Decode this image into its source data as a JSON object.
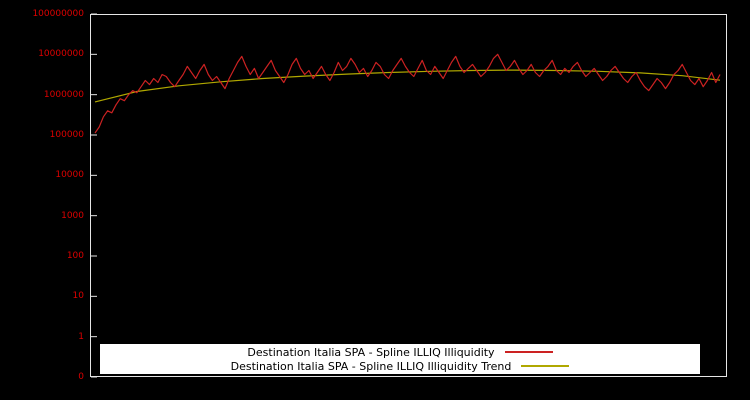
{
  "chart": {
    "background_color": "#000000",
    "plot_border_color": "#e6e6e6",
    "tick_label_color": "#dd0000",
    "y_axis": {
      "scale": "log",
      "tick_labels": [
        "100000000",
        "10000000",
        "1000000",
        "100000",
        "10000",
        "1000",
        "100",
        "10",
        "1",
        "0"
      ]
    },
    "legend": {
      "background_color": "#ffffff",
      "text_color": "#000000",
      "position": "bottom-center"
    }
  },
  "chart_data": {
    "type": "line",
    "title": "",
    "xlabel": "",
    "ylabel": "",
    "yscale": "log",
    "ylim": [
      0.1,
      100000000
    ],
    "x_range": [
      0,
      149
    ],
    "grid": false,
    "legend_position": "bottom-center",
    "series": [
      {
        "name": "Destination Italia SPA - Spline ILLIQ Illiquidity",
        "color": "#cc2222",
        "values": [
          112000,
          158000,
          282000,
          398000,
          355000,
          562000,
          794000,
          708000,
          1000000,
          1260000,
          1120000,
          1580000,
          2240000,
          1780000,
          2510000,
          2000000,
          3160000,
          2820000,
          2000000,
          1580000,
          2240000,
          3160000,
          5010000,
          3550000,
          2510000,
          3980000,
          5620000,
          3160000,
          2240000,
          2820000,
          2000000,
          1410000,
          2510000,
          3980000,
          6310000,
          8910000,
          5010000,
          3160000,
          4470000,
          2510000,
          3550000,
          5010000,
          7080000,
          3980000,
          2820000,
          2000000,
          3160000,
          5620000,
          7940000,
          4470000,
          3160000,
          3980000,
          2510000,
          3550000,
          5010000,
          3160000,
          2240000,
          3550000,
          6310000,
          3980000,
          5010000,
          7940000,
          5620000,
          3550000,
          4470000,
          2820000,
          3980000,
          6310000,
          5010000,
          3160000,
          2510000,
          3980000,
          5620000,
          7940000,
          5010000,
          3550000,
          2820000,
          4470000,
          7080000,
          3980000,
          3160000,
          5010000,
          3550000,
          2510000,
          3980000,
          6310000,
          8910000,
          5010000,
          3550000,
          4470000,
          5620000,
          3980000,
          2820000,
          3550000,
          5010000,
          7940000,
          10000000,
          6310000,
          3980000,
          5010000,
          7080000,
          4470000,
          3160000,
          3980000,
          5620000,
          3550000,
          2820000,
          3980000,
          5010000,
          7080000,
          3980000,
          3160000,
          4470000,
          3550000,
          5010000,
          6310000,
          3980000,
          2820000,
          3550000,
          4470000,
          3160000,
          2240000,
          2820000,
          3980000,
          5010000,
          3550000,
          2510000,
          2000000,
          2820000,
          3550000,
          2240000,
          1580000,
          1260000,
          1780000,
          2510000,
          2000000,
          1410000,
          2000000,
          3160000,
          3980000,
          5620000,
          3550000,
          2240000,
          1780000,
          2510000,
          1580000,
          2240000,
          3550000,
          2000000,
          3160000
        ]
      },
      {
        "name": "Destination Italia SPA - Spline ILLIQ Illiquidity Trend",
        "color": "#b0a800",
        "x": [
          0,
          10,
          20,
          30,
          40,
          50,
          60,
          70,
          80,
          90,
          100,
          110,
          120,
          130,
          140,
          149
        ],
        "values": [
          660000,
          1200000,
          1660000,
          2090000,
          2510000,
          2880000,
          3240000,
          3550000,
          3800000,
          3980000,
          4070000,
          3980000,
          3800000,
          3470000,
          2950000,
          2290000
        ]
      }
    ]
  }
}
